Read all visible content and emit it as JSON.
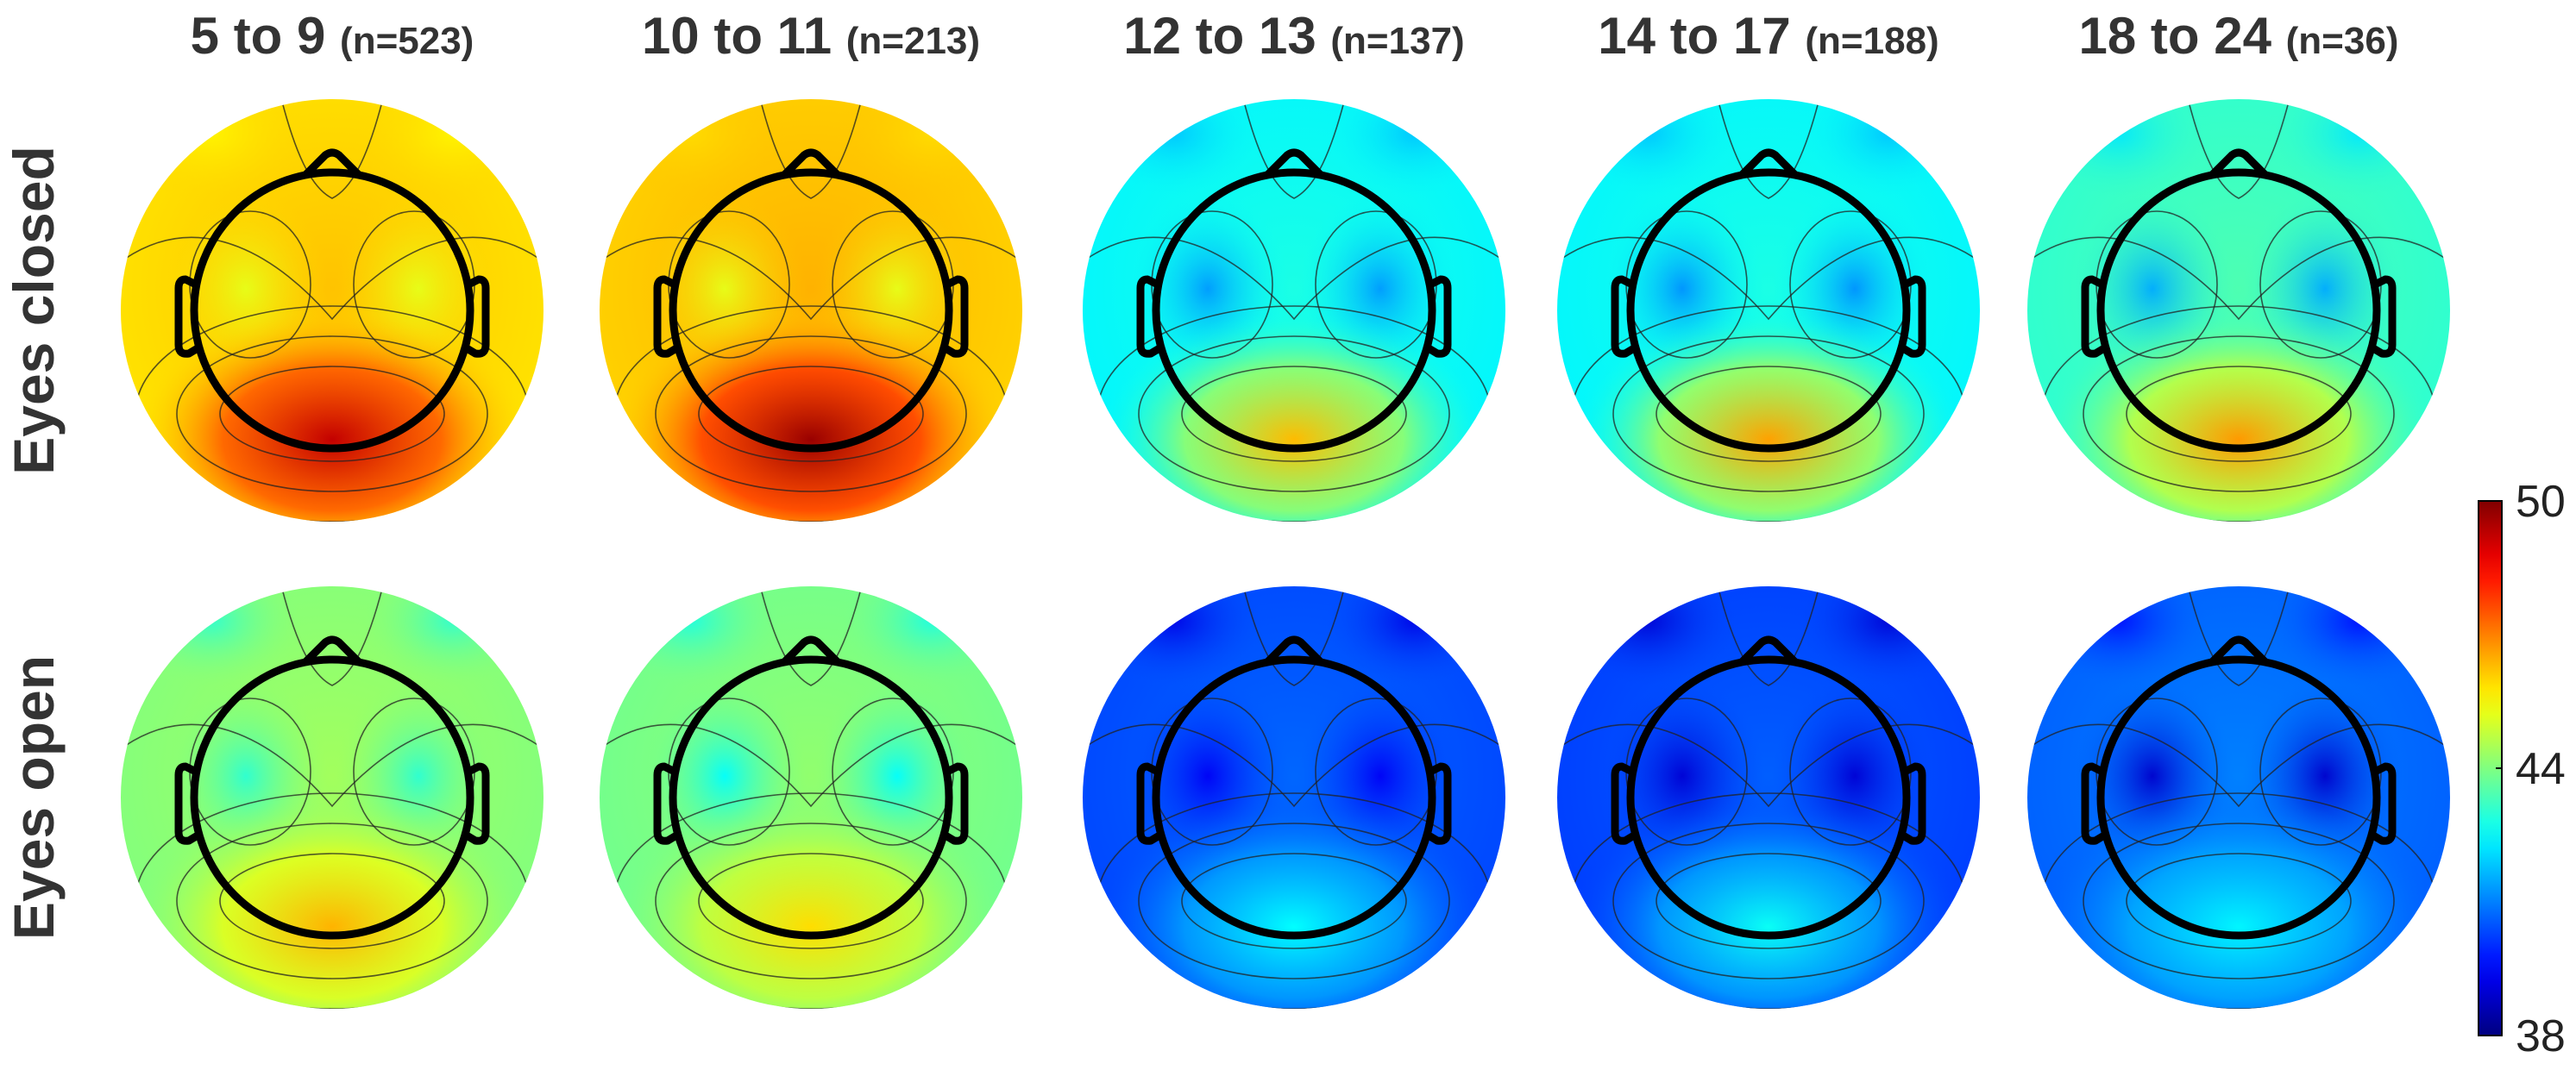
{
  "chart_data": {
    "type": "heatmap",
    "title": "",
    "columns": [
      {
        "label": "5 to 9",
        "n": "(n=523)"
      },
      {
        "label": "10 to 11",
        "n": "(n=213)"
      },
      {
        "label": "12 to 13",
        "n": "(n=137)"
      },
      {
        "label": "14 to 17",
        "n": "(n=188)"
      },
      {
        "label": "18 to 24",
        "n": "(n=36)"
      }
    ],
    "rows": [
      "Eyes closed",
      "Eyes open"
    ],
    "colorbar": {
      "min": 38,
      "max": 50,
      "tick_labels": [
        "50",
        "44",
        "38"
      ],
      "ticks": [
        50,
        44,
        38
      ],
      "colormap": "jet"
    },
    "maps": [
      [
        {
          "base": 46.0,
          "frontal": 45.6,
          "temporal": 45.2,
          "posterior": 49.2
        },
        {
          "base": 46.2,
          "frontal": 45.9,
          "temporal": 45.2,
          "posterior": 49.7
        },
        {
          "base": 42.6,
          "frontal": 41.8,
          "temporal": 41.3,
          "posterior": 46.3
        },
        {
          "base": 42.6,
          "frontal": 41.8,
          "temporal": 41.2,
          "posterior": 46.6
        },
        {
          "base": 43.2,
          "frontal": 42.2,
          "temporal": 41.5,
          "posterior": 46.7
        }
      ],
      [
        {
          "base": 44.2,
          "frontal": 43.0,
          "temporal": 43.0,
          "posterior": 46.4
        },
        {
          "base": 44.0,
          "frontal": 42.8,
          "temporal": 42.5,
          "posterior": 45.9
        },
        {
          "base": 40.5,
          "frontal": 39.2,
          "temporal": 39.4,
          "posterior": 42.5
        },
        {
          "base": 40.4,
          "frontal": 39.0,
          "temporal": 39.0,
          "posterior": 42.6
        },
        {
          "base": 40.8,
          "frontal": 39.6,
          "temporal": 38.9,
          "posterior": 42.4
        }
      ]
    ]
  }
}
